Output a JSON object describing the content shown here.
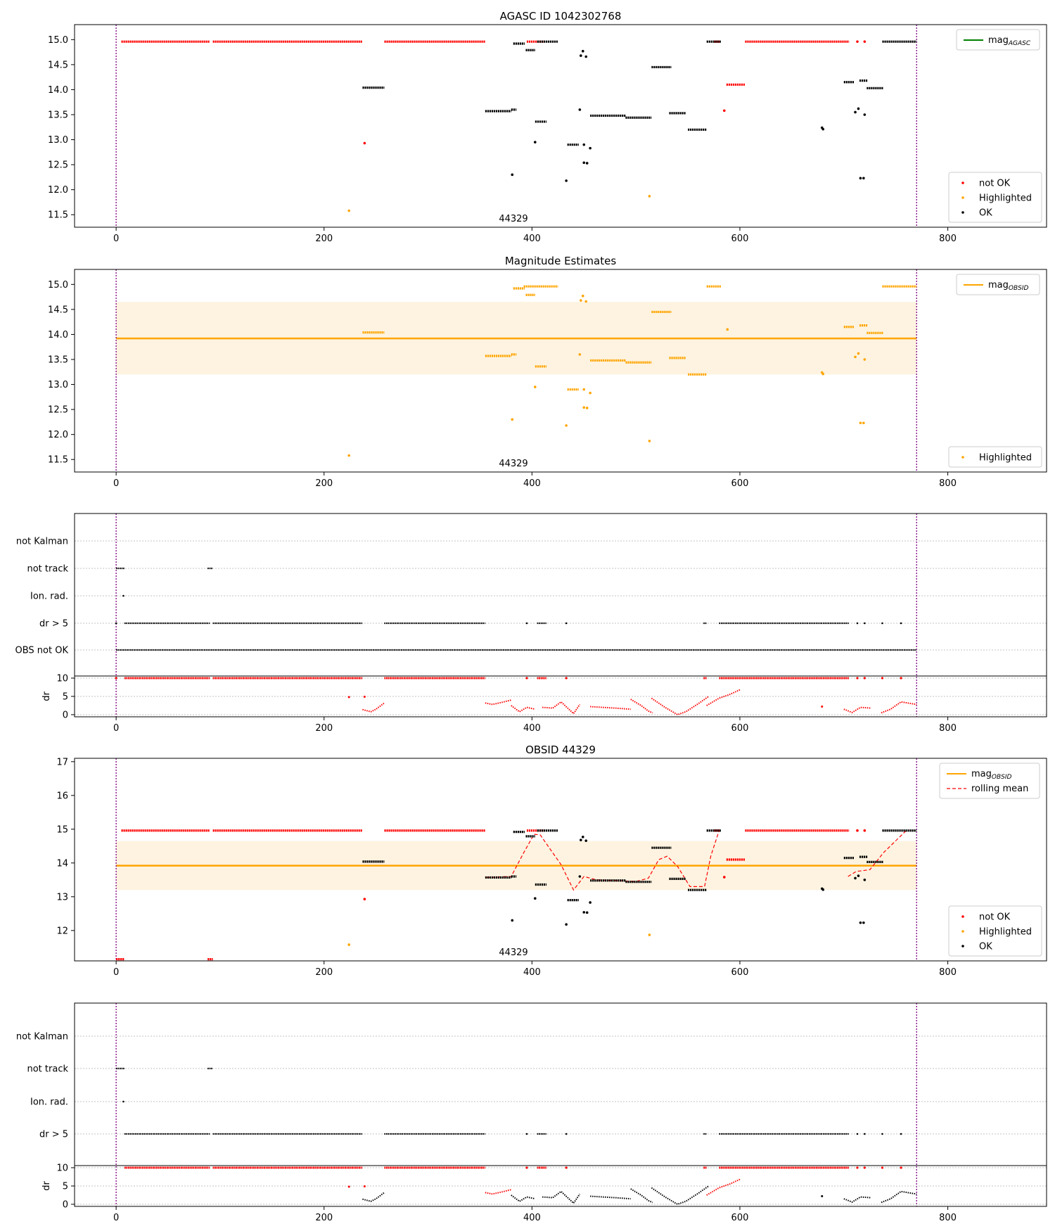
{
  "figure": {
    "background": "#ffffff"
  },
  "chart_data": [
    {
      "id": "agasc",
      "type": "scatter",
      "title": "AGASC ID 1042302768",
      "x_ticks": [
        0,
        200,
        400,
        600,
        800
      ],
      "xlim": [
        -40,
        895
      ],
      "ylim": [
        11.25,
        15.3
      ],
      "y_ticks": [
        "11.5",
        "12.0",
        "12.5",
        "13.0",
        "13.5",
        "14.0",
        "14.5",
        "15.0"
      ],
      "annotation": "44329",
      "vlines": [
        0,
        770
      ],
      "legend_top": [
        {
          "label": "mag",
          "sub": "AGASC",
          "kind": "line",
          "color": "#008000"
        }
      ],
      "legend_bottom": [
        {
          "label": "not OK",
          "color": "#ff0000"
        },
        {
          "label": "Highlighted",
          "color": "#ffa500"
        },
        {
          "label": "OK",
          "color": "#000000"
        }
      ],
      "series": [
        {
          "color": "#ff0000",
          "segments": [
            [
              0,
              0,
              14.96
            ],
            [
              5,
              90,
              14.96
            ],
            [
              93,
              237,
              14.96
            ],
            [
              258,
              355,
              14.96
            ],
            [
              395,
              412,
              14.96
            ],
            [
              575,
              581,
              14.96
            ],
            [
              605,
              705,
              14.96
            ],
            [
              587,
              605,
              14.1
            ]
          ],
          "points": [
            [
              239,
              12.93
            ],
            [
              585,
              13.58
            ],
            [
              713,
              14.96
            ],
            [
              720,
              14.96
            ]
          ]
        },
        {
          "color": "#ffa500",
          "points": [
            [
              224,
              11.58
            ],
            [
              513,
              11.87
            ]
          ]
        },
        {
          "color": "#000000",
          "segments": [
            [
              237,
              258,
              14.04
            ],
            [
              355,
              380,
              13.57
            ],
            [
              380,
              385,
              13.6
            ],
            [
              382,
              393,
              14.92
            ],
            [
              394,
              403,
              14.79
            ],
            [
              405,
              425,
              14.96
            ],
            [
              403,
              414,
              13.36
            ],
            [
              434,
              445,
              12.9
            ],
            [
              456,
              490,
              13.48
            ],
            [
              490,
              515,
              13.44
            ],
            [
              515,
              534,
              14.45
            ],
            [
              532,
              548,
              13.53
            ],
            [
              550,
              568,
              13.2
            ],
            [
              568,
              582,
              14.96
            ],
            [
              700,
              710,
              14.15
            ],
            [
              715,
              723,
              14.18
            ],
            [
              722,
              738,
              14.03
            ],
            [
              737,
              770,
              14.96
            ]
          ],
          "points": [
            [
              381,
              12.3
            ],
            [
              403,
              12.95
            ],
            [
              433,
              12.18
            ],
            [
              446,
              13.6
            ],
            [
              447,
              14.68
            ],
            [
              449,
              14.77
            ],
            [
              452,
              14.66
            ],
            [
              450,
              12.54
            ],
            [
              453,
              12.53
            ],
            [
              450,
              12.9
            ],
            [
              456,
              12.83
            ],
            [
              679,
              13.24
            ],
            [
              680,
              13.21
            ],
            [
              711,
              13.55
            ],
            [
              714,
              13.62
            ],
            [
              720,
              13.5
            ],
            [
              716,
              12.23
            ],
            [
              719,
              12.23
            ]
          ]
        }
      ]
    },
    {
      "id": "estimates",
      "type": "scatter",
      "title": "Magnitude Estimates",
      "x_ticks": [
        0,
        200,
        400,
        600,
        800
      ],
      "xlim": [
        -40,
        895
      ],
      "ylim": [
        11.25,
        15.3
      ],
      "y_ticks": [
        "11.5",
        "12.0",
        "12.5",
        "13.0",
        "13.5",
        "14.0",
        "14.5",
        "15.0"
      ],
      "annotation": "44329",
      "vlines": [
        0,
        770
      ],
      "band": {
        "x0": 0,
        "x1": 770,
        "y0": 13.2,
        "y1": 14.65,
        "color": "#fdf3e0"
      },
      "hline": {
        "y": 13.92,
        "x0": 0,
        "x1": 770,
        "color": "#ffa500"
      },
      "legend_top": [
        {
          "label": "mag",
          "sub": "OBSID",
          "kind": "line",
          "color": "#ffa500"
        }
      ],
      "legend_bottom": [
        {
          "label": "Highlighted",
          "color": "#ffa500"
        }
      ],
      "series": [
        {
          "color": "#ffa500",
          "segments": [
            [
              237,
              258,
              14.04
            ],
            [
              355,
              380,
              13.57
            ],
            [
              380,
              385,
              13.6
            ],
            [
              382,
              393,
              14.92
            ],
            [
              394,
              403,
              14.79
            ],
            [
              392,
              425,
              14.96
            ],
            [
              403,
              414,
              13.36
            ],
            [
              434,
              445,
              12.9
            ],
            [
              456,
              490,
              13.48
            ],
            [
              490,
              515,
              13.44
            ],
            [
              515,
              534,
              14.45
            ],
            [
              532,
              548,
              13.53
            ],
            [
              550,
              568,
              13.2
            ],
            [
              568,
              582,
              14.96
            ],
            [
              700,
              710,
              14.15
            ],
            [
              715,
              723,
              14.18
            ],
            [
              722,
              738,
              14.03
            ],
            [
              737,
              770,
              14.96
            ]
          ],
          "points": [
            [
              224,
              11.58
            ],
            [
              381,
              12.3
            ],
            [
              403,
              12.95
            ],
            [
              433,
              12.18
            ],
            [
              446,
              13.6
            ],
            [
              447,
              14.68
            ],
            [
              449,
              14.77
            ],
            [
              452,
              14.66
            ],
            [
              450,
              12.54
            ],
            [
              453,
              12.53
            ],
            [
              450,
              12.9
            ],
            [
              456,
              12.83
            ],
            [
              513,
              11.87
            ],
            [
              588,
              14.1
            ],
            [
              679,
              13.24
            ],
            [
              680,
              13.21
            ],
            [
              711,
              13.55
            ],
            [
              714,
              13.62
            ],
            [
              720,
              13.5
            ],
            [
              716,
              12.23
            ],
            [
              719,
              12.23
            ]
          ]
        }
      ]
    },
    {
      "id": "flags1",
      "type": "scatter",
      "title": "",
      "x_ticks": [
        0,
        200,
        400,
        600,
        800
      ],
      "xlim": [
        -40,
        895
      ],
      "vlines": [
        0,
        770
      ],
      "flag_labels": [
        "not Kalman",
        "not track",
        "Ion. rad.",
        "dr > 5",
        "OBS not OK"
      ],
      "flags": {
        "not_track": [
          [
            0,
            8
          ],
          [
            88,
            93
          ]
        ],
        "ion_rad": [
          [
            7,
            7
          ]
        ],
        "dr_gt5": [
          [
            0,
            0
          ],
          [
            8,
            90
          ],
          [
            93,
            237
          ],
          [
            258,
            355
          ],
          [
            395,
            395
          ],
          [
            405,
            414
          ],
          [
            433,
            433
          ],
          [
            565,
            568
          ],
          [
            580,
            705
          ],
          [
            713,
            713
          ],
          [
            720,
            720
          ],
          [
            737,
            737
          ],
          [
            755,
            755
          ]
        ],
        "obs_not_ok": [
          [
            0,
            770
          ]
        ]
      },
      "dr_ylabel": "dr",
      "dr_ticks": [
        "0",
        "5",
        "10"
      ],
      "dr_ok_black": false
    },
    {
      "id": "obsid",
      "type": "scatter",
      "title": "OBSID 44329",
      "x_ticks": [
        0,
        200,
        400,
        600,
        800
      ],
      "xlim": [
        -40,
        895
      ],
      "ylim": [
        11.1,
        17.1
      ],
      "y_ticks": [
        "12",
        "13",
        "14",
        "15",
        "16",
        "17"
      ],
      "annotation": "44329",
      "vlines": [
        0,
        770
      ],
      "band": {
        "x0": 0,
        "x1": 770,
        "y0": 13.2,
        "y1": 14.65,
        "color": "#fdf3e0"
      },
      "hline": {
        "y": 13.92,
        "x0": 0,
        "x1": 770,
        "color": "#ffa500"
      },
      "legend_top": [
        {
          "label": "mag",
          "sub": "OBSID",
          "kind": "line",
          "color": "#ffa500"
        },
        {
          "label": "rolling mean",
          "kind": "dash",
          "color": "#ff0000"
        }
      ],
      "legend_bottom": [
        {
          "label": "not OK",
          "color": "#ff0000"
        },
        {
          "label": "Highlighted",
          "color": "#ffa500"
        },
        {
          "label": "OK",
          "color": "#000000"
        }
      ],
      "rolling_mean": [
        [
          [
            356,
            13.57
          ],
          [
            380,
            13.6
          ],
          [
            392,
            14.3
          ],
          [
            402,
            14.85
          ],
          [
            408,
            14.83
          ],
          [
            420,
            14.3
          ],
          [
            428,
            13.95
          ],
          [
            440,
            13.2
          ],
          [
            450,
            13.6
          ],
          [
            462,
            13.5
          ],
          [
            480,
            13.48
          ],
          [
            500,
            13.45
          ],
          [
            512,
            13.55
          ],
          [
            522,
            14.1
          ],
          [
            530,
            14.2
          ],
          [
            540,
            13.9
          ],
          [
            552,
            13.3
          ],
          [
            566,
            13.3
          ],
          [
            572,
            14.2
          ],
          [
            580,
            14.96
          ]
        ],
        [
          [
            704,
            13.6
          ],
          [
            712,
            13.75
          ],
          [
            725,
            13.8
          ],
          [
            738,
            14.3
          ],
          [
            760,
            14.96
          ]
        ]
      ],
      "series": [
        {
          "color": "#ff0000",
          "segments": [
            [
              0,
              0,
              14.96
            ],
            [
              5,
              90,
              14.96
            ],
            [
              93,
              237,
              14.96
            ],
            [
              258,
              355,
              14.96
            ],
            [
              395,
              412,
              14.96
            ],
            [
              575,
              581,
              14.96
            ],
            [
              605,
              705,
              14.96
            ],
            [
              587,
              605,
              14.1
            ],
            [
              0,
              8,
              11.15
            ],
            [
              88,
              93,
              11.15
            ]
          ],
          "points": [
            [
              239,
              12.93
            ],
            [
              585,
              13.58
            ],
            [
              713,
              14.96
            ],
            [
              720,
              14.96
            ]
          ]
        },
        {
          "color": "#ffa500",
          "points": [
            [
              224,
              11.58
            ],
            [
              513,
              11.87
            ]
          ]
        },
        {
          "color": "#000000",
          "segments": [
            [
              237,
              258,
              14.04
            ],
            [
              355,
              380,
              13.57
            ],
            [
              380,
              385,
              13.6
            ],
            [
              382,
              393,
              14.92
            ],
            [
              394,
              403,
              14.79
            ],
            [
              405,
              425,
              14.96
            ],
            [
              403,
              414,
              13.36
            ],
            [
              434,
              445,
              12.9
            ],
            [
              456,
              490,
              13.48
            ],
            [
              490,
              515,
              13.44
            ],
            [
              515,
              534,
              14.45
            ],
            [
              532,
              548,
              13.53
            ],
            [
              550,
              568,
              13.2
            ],
            [
              568,
              582,
              14.96
            ],
            [
              700,
              710,
              14.15
            ],
            [
              715,
              723,
              14.18
            ],
            [
              722,
              738,
              14.03
            ],
            [
              737,
              770,
              14.96
            ]
          ],
          "points": [
            [
              381,
              12.3
            ],
            [
              403,
              12.95
            ],
            [
              433,
              12.18
            ],
            [
              446,
              13.6
            ],
            [
              447,
              14.68
            ],
            [
              449,
              14.77
            ],
            [
              452,
              14.66
            ],
            [
              450,
              12.54
            ],
            [
              453,
              12.53
            ],
            [
              456,
              12.83
            ],
            [
              679,
              13.24
            ],
            [
              680,
              13.21
            ],
            [
              711,
              13.55
            ],
            [
              714,
              13.62
            ],
            [
              720,
              13.5
            ],
            [
              716,
              12.23
            ],
            [
              719,
              12.23
            ]
          ]
        }
      ]
    },
    {
      "id": "flags2",
      "type": "scatter",
      "title": "",
      "x_ticks": [
        0,
        200,
        400,
        600,
        800
      ],
      "xlim": [
        -40,
        895
      ],
      "vlines": [
        0,
        770
      ],
      "flag_labels": [
        "not Kalman",
        "not track",
        "Ion. rad.",
        "dr > 5"
      ],
      "flags": {
        "not_track": [
          [
            0,
            8
          ],
          [
            88,
            93
          ]
        ],
        "ion_rad": [
          [
            7,
            7
          ]
        ],
        "dr_gt5": [
          [
            8,
            90
          ],
          [
            93,
            237
          ],
          [
            258,
            355
          ],
          [
            395,
            395
          ],
          [
            405,
            414
          ],
          [
            433,
            433
          ],
          [
            565,
            568
          ],
          [
            580,
            705
          ],
          [
            713,
            713
          ],
          [
            720,
            720
          ],
          [
            737,
            737
          ],
          [
            755,
            755
          ]
        ],
        "obs_not_ok": []
      },
      "dr_ylabel": "dr",
      "dr_ticks": [
        "0",
        "5",
        "10"
      ],
      "dr_ok_black": true
    }
  ]
}
